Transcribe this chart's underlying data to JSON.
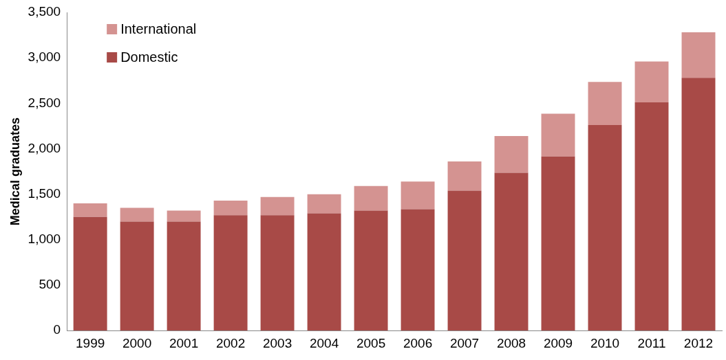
{
  "chart_data": {
    "type": "bar",
    "stacked": true,
    "ylabel": "Medical graduates",
    "categories": [
      "1999",
      "2000",
      "2001",
      "2002",
      "2003",
      "2004",
      "2005",
      "2006",
      "2007",
      "2008",
      "2009",
      "2010",
      "2011",
      "2012"
    ],
    "series": [
      {
        "name": "Domestic",
        "color": "#a84a47",
        "values": [
          1250,
          1200,
          1200,
          1270,
          1270,
          1290,
          1320,
          1335,
          1540,
          1735,
          1915,
          2260,
          2510,
          2780
        ]
      },
      {
        "name": "International",
        "color": "#d49391",
        "values": [
          150,
          150,
          120,
          160,
          200,
          210,
          270,
          305,
          320,
          405,
          470,
          475,
          450,
          500
        ]
      }
    ],
    "ylim": [
      0,
      3500
    ],
    "yticks": [
      0,
      500,
      {
        "value": 1000,
        "label": "1,000"
      },
      {
        "value": 1500,
        "label": "1,500"
      },
      {
        "value": 2000,
        "label": "2,000"
      },
      {
        "value": 2500,
        "label": "2,500"
      },
      {
        "value": 3000,
        "label": "3,000"
      },
      {
        "value": 3500,
        "label": "3,500"
      }
    ],
    "grid": false,
    "legend": "top left"
  }
}
